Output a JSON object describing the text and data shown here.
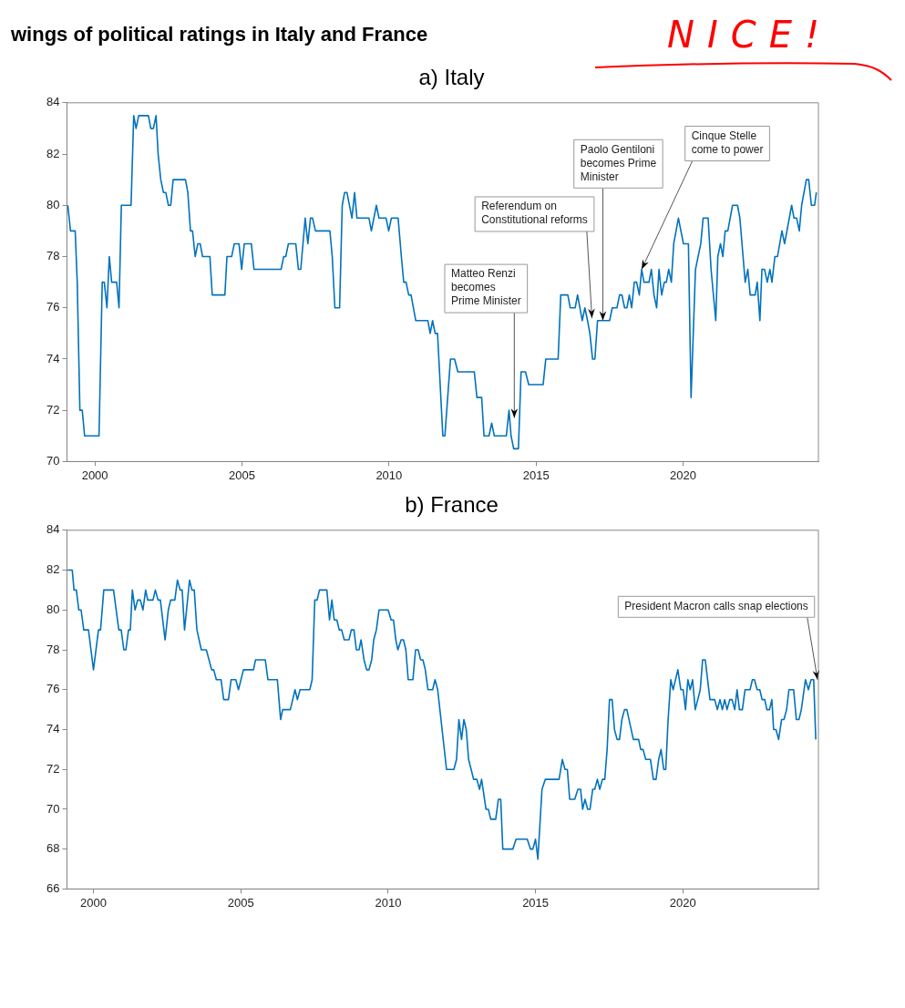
{
  "chart_data": [
    {
      "type": "line",
      "title": "wings of political ratings in Italy and France",
      "subtitle": "a) Italy",
      "x": [
        1999.08,
        1999.17,
        1999.33,
        1999.4,
        1999.49,
        1999.57,
        1999.65,
        2000.14,
        2000.25,
        2000.32,
        2000.41,
        2000.49,
        2000.57,
        2000.74,
        2000.82,
        2000.9,
        2001.23,
        2001.32,
        2001.4,
        2001.49,
        2001.82,
        2001.9,
        2001.99,
        2002.08,
        2002.15,
        2002.24,
        2002.33,
        2002.41,
        2002.5,
        2002.58,
        2002.66,
        2003.08,
        2003.16,
        2003.25,
        2003.32,
        2003.41,
        2003.5,
        2003.58,
        2003.66,
        2003.91,
        2003.99,
        2004.42,
        2004.49,
        2004.65,
        2004.74,
        2004.9,
        2004.99,
        2005.08,
        2005.32,
        2005.41,
        2006.33,
        2006.42,
        2006.49,
        2006.58,
        2006.83,
        2006.92,
        2007.0,
        2007.15,
        2007.24,
        2007.33,
        2007.4,
        2007.5,
        2007.99,
        2008.07,
        2008.16,
        2008.32,
        2008.41,
        2008.49,
        2008.57,
        2008.74,
        2008.83,
        2008.91,
        2009.32,
        2009.4,
        2009.57,
        2009.66,
        2009.9,
        2009.99,
        2010.08,
        2010.31,
        2010.42,
        2010.5,
        2010.58,
        2010.67,
        2010.75,
        2010.91,
        2011.32,
        2011.4,
        2011.48,
        2011.57,
        2011.65,
        2011.83,
        2011.9,
        2012.09,
        2012.23,
        2012.34,
        2012.9,
        2012.99,
        2013.15,
        2013.23,
        2013.4,
        2013.49,
        2013.58,
        2013.99,
        2014.08,
        2014.15,
        2014.24,
        2014.4,
        2014.49,
        2014.64,
        2014.75,
        2015.24,
        2015.33,
        2015.75,
        2015.84,
        2016.08,
        2016.16,
        2016.33,
        2016.41,
        2016.49,
        2016.57,
        2016.66,
        2016.75,
        2016.83,
        2016.92,
        2017.0,
        2017.09,
        2017.5,
        2017.59,
        2017.75,
        2017.84,
        2017.92,
        2018.01,
        2018.09,
        2018.17,
        2018.25,
        2018.34,
        2018.42,
        2018.51,
        2018.59,
        2018.67,
        2018.84,
        2018.92,
        2019.01,
        2019.1,
        2019.18,
        2019.27,
        2019.36,
        2019.43,
        2019.51,
        2019.6,
        2019.68,
        2019.84,
        2020.01,
        2020.18,
        2020.27,
        2020.42,
        2020.6,
        2020.68,
        2020.85,
        2020.95,
        2021.11,
        2021.18,
        2021.27,
        2021.35,
        2021.43,
        2021.52,
        2021.68,
        2021.85,
        2021.93,
        2022.11,
        2022.2,
        2022.28,
        2022.45,
        2022.52,
        2022.61,
        2022.68,
        2022.77,
        2022.86,
        2022.95,
        2023.02,
        2023.12,
        2023.21,
        2023.36,
        2023.45,
        2023.69,
        2023.77,
        2023.86,
        2023.95,
        2024.03,
        2024.19,
        2024.27,
        2024.36,
        2024.47,
        2024.53
      ],
      "series": [
        {
          "color": "#0072bd",
          "values": [
            80,
            79,
            79,
            77,
            72,
            72,
            71,
            71,
            77,
            77,
            76,
            78,
            77,
            77,
            76,
            80,
            80,
            83.5,
            83,
            83.5,
            83.5,
            83,
            83,
            83.5,
            82,
            81,
            80.5,
            80.5,
            80,
            80,
            81,
            81,
            80.5,
            79,
            79,
            78,
            78.5,
            78.5,
            78,
            78,
            76.5,
            76.5,
            78,
            78,
            78.5,
            78.5,
            77.5,
            78.5,
            78.5,
            77.5,
            77.5,
            78,
            78,
            78.5,
            78.5,
            77.5,
            77.5,
            79.5,
            78.5,
            79.5,
            79.5,
            79,
            79,
            78,
            76,
            76,
            80,
            80.5,
            80.5,
            79.5,
            80.5,
            79.5,
            79.5,
            79,
            80,
            79.5,
            79.5,
            79,
            79.5,
            79.5,
            78,
            77,
            77,
            76.5,
            76.5,
            75.5,
            75.5,
            75,
            75.5,
            75,
            75,
            71,
            71,
            74,
            74,
            73.5,
            73.5,
            72.5,
            72.5,
            71,
            71,
            71.5,
            71,
            71,
            72,
            71,
            70.5,
            70.5,
            73.5,
            73.5,
            73,
            73,
            74,
            74,
            76.5,
            76.5,
            76,
            76,
            76.5,
            76,
            75.5,
            76,
            75.5,
            75,
            74,
            74,
            75.5,
            75.5,
            76,
            76,
            76.5,
            76.5,
            76,
            76,
            76.5,
            76,
            77,
            77,
            76.5,
            77.5,
            77,
            77,
            77.5,
            76.5,
            76,
            77.5,
            76.5,
            77,
            77,
            77.5,
            77,
            78.5,
            79.5,
            78.5,
            78.5,
            72.5,
            77.5,
            78.5,
            79.5,
            79.5,
            77.5,
            75.5,
            78,
            78.5,
            78,
            79,
            79,
            80,
            80,
            79.5,
            77,
            77.5,
            76.5,
            76.5,
            77,
            75.5,
            77.5,
            77.5,
            77,
            77.5,
            77,
            78,
            78,
            79,
            78.5,
            80,
            79.5,
            79.5,
            79,
            80,
            81,
            81,
            80,
            80,
            80.5
          ]
        }
      ],
      "xlim": [
        1999.05,
        2024.6
      ],
      "xticks": [
        2000,
        2005,
        2010,
        2015,
        2020
      ],
      "ylim": [
        70,
        84
      ],
      "yticks": [
        70,
        72,
        74,
        76,
        78,
        80,
        82,
        84
      ],
      "marker": "none",
      "line_style": "solid",
      "legend": false,
      "annotations": [
        "NICE!",
        {
          "text": "Matteo Renzi\nbecomes\nPrime Minister",
          "x": 2014.26,
          "y": 71.7
        },
        {
          "text": "Referendum on\nConstitutional reforms",
          "x": 2016.9,
          "y": 75.6
        },
        {
          "text": "Paolo Gentiloni\nbecomes Prime\nMinister",
          "x": 2017.27,
          "y": 75.5
        },
        {
          "text": "Cinque Stelle\ncome to power",
          "x": 2018.59,
          "y": 77.5
        }
      ]
    },
    {
      "type": "line",
      "title": "b) France",
      "x": [
        1999.12,
        1999.28,
        1999.34,
        1999.42,
        1999.5,
        1999.58,
        1999.67,
        1999.83,
        2000.0,
        2000.17,
        2000.24,
        2000.35,
        2000.68,
        2000.86,
        2000.94,
        2001.03,
        2001.1,
        2001.19,
        2001.25,
        2001.32,
        2001.41,
        2001.5,
        2001.59,
        2001.68,
        2001.77,
        2001.84,
        2002.02,
        2002.1,
        2002.19,
        2002.27,
        2002.43,
        2002.54,
        2002.62,
        2002.76,
        2002.85,
        2002.94,
        2003.01,
        2003.09,
        2003.26,
        2003.34,
        2003.42,
        2003.51,
        2003.66,
        2003.83,
        2004.01,
        2004.08,
        2004.17,
        2004.33,
        2004.42,
        2004.58,
        2004.67,
        2004.83,
        2004.92,
        2005.09,
        2005.43,
        2005.5,
        2005.83,
        2005.92,
        2006.24,
        2006.35,
        2006.42,
        2006.68,
        2006.84,
        2006.92,
        2007.01,
        2007.34,
        2007.42,
        2007.51,
        2007.59,
        2007.67,
        2007.92,
        2008.01,
        2008.09,
        2008.17,
        2008.26,
        2008.34,
        2008.42,
        2008.51,
        2008.67,
        2008.75,
        2008.84,
        2008.92,
        2009.01,
        2009.08,
        2009.18,
        2009.27,
        2009.35,
        2009.44,
        2009.51,
        2009.6,
        2009.69,
        2010.0,
        2010.1,
        2010.18,
        2010.26,
        2010.33,
        2010.44,
        2010.52,
        2010.6,
        2010.68,
        2010.84,
        2010.93,
        2011.02,
        2011.1,
        2011.18,
        2011.26,
        2011.35,
        2011.51,
        2011.59,
        2011.68,
        2011.98,
        2012.23,
        2012.32,
        2012.4,
        2012.49,
        2012.57,
        2012.65,
        2012.73,
        2012.9,
        2013.01,
        2013.1,
        2013.17,
        2013.32,
        2013.4,
        2013.48,
        2013.65,
        2013.74,
        2013.82,
        2013.89,
        2014.23,
        2014.34,
        2014.72,
        2014.83,
        2014.91,
        2015.0,
        2015.08,
        2015.22,
        2015.33,
        2015.8,
        2015.91,
        2016.0,
        2016.08,
        2016.16,
        2016.33,
        2016.44,
        2016.53,
        2016.6,
        2016.68,
        2016.77,
        2016.85,
        2016.94,
        2017.01,
        2017.1,
        2017.18,
        2017.27,
        2017.35,
        2017.43,
        2017.51,
        2017.6,
        2017.68,
        2017.77,
        2017.85,
        2017.93,
        2018.02,
        2018.1,
        2018.32,
        2018.5,
        2018.57,
        2018.65,
        2018.74,
        2018.9,
        2019.0,
        2019.09,
        2019.18,
        2019.26,
        2019.35,
        2019.42,
        2019.5,
        2019.59,
        2019.67,
        2019.83,
        2019.93,
        2020.01,
        2020.09,
        2020.17,
        2020.25,
        2020.33,
        2020.42,
        2020.59,
        2020.67,
        2020.76,
        2020.92,
        2021.08,
        2021.17,
        2021.26,
        2021.34,
        2021.42,
        2021.5,
        2021.59,
        2021.67,
        2021.76,
        2021.84,
        2021.92,
        2022.02,
        2022.11,
        2022.28,
        2022.36,
        2022.43,
        2022.52,
        2022.61,
        2022.69,
        2022.78,
        2022.85,
        2022.94,
        2023.02,
        2023.08,
        2023.16,
        2023.25,
        2023.35,
        2023.43,
        2023.52,
        2023.6,
        2023.76,
        2023.85,
        2023.94,
        2024.02,
        2024.16,
        2024.26,
        2024.35,
        2024.44,
        2024.51
      ],
      "series": [
        {
          "color": "#0072bd",
          "values": [
            82,
            82,
            81,
            81,
            80,
            80,
            79,
            79,
            77,
            79,
            79,
            81,
            81,
            79,
            79,
            78,
            78,
            79,
            79,
            81,
            80,
            80.5,
            80.5,
            80,
            81,
            80.5,
            80.5,
            81,
            80.5,
            80.5,
            78.5,
            80,
            80.5,
            80.5,
            81.5,
            81,
            81,
            79,
            81.5,
            81,
            81,
            79,
            78,
            78,
            77,
            77,
            76.5,
            76.5,
            75.5,
            75.5,
            76.5,
            76.5,
            76,
            77,
            77,
            77.5,
            77.5,
            76.5,
            76.5,
            74.5,
            75,
            75,
            76,
            75.5,
            76,
            76,
            76.5,
            80.5,
            80.5,
            81,
            81,
            79.5,
            80.5,
            79.5,
            79.5,
            79,
            79,
            78.5,
            78.5,
            79,
            79,
            78,
            78,
            78.5,
            77.5,
            77,
            77,
            77.5,
            78.5,
            79,
            80,
            80,
            79.5,
            79.5,
            78.5,
            78,
            78.5,
            78.5,
            78,
            76.5,
            76.5,
            78,
            78,
            77.5,
            77.5,
            77,
            76,
            76,
            76.5,
            76,
            72,
            72,
            72.5,
            74.5,
            73.5,
            74.5,
            74,
            72.5,
            71.5,
            71.5,
            71,
            71.5,
            70,
            70,
            69.5,
            69.5,
            70.5,
            70.5,
            68,
            68,
            68.5,
            68.5,
            68,
            68,
            68.5,
            67.5,
            71,
            71.5,
            71.5,
            72.5,
            72,
            72,
            70.5,
            70.5,
            71,
            71,
            70,
            70.5,
            70,
            70,
            71,
            71,
            71.5,
            71,
            71.5,
            71.5,
            73,
            75.5,
            75.5,
            74,
            73.5,
            73.5,
            74.5,
            75,
            75,
            73.5,
            73.5,
            73,
            73,
            72.5,
            72.5,
            71.5,
            71.5,
            72.5,
            73,
            72,
            72,
            74.5,
            76.5,
            76,
            77,
            76,
            76,
            75,
            76.5,
            76,
            76.5,
            75,
            76,
            77.5,
            77.5,
            75.5,
            75.5,
            75,
            75.5,
            75,
            75.5,
            75,
            75.5,
            75.5,
            75,
            76,
            75,
            75,
            76,
            76,
            76.5,
            76.5,
            76,
            76,
            75.5,
            75.5,
            75,
            75,
            75.5,
            74,
            74,
            73.5,
            74.5,
            74.5,
            75,
            76,
            76,
            74.5,
            74.5,
            75,
            76.5,
            76,
            76.5,
            76.5,
            73.5
          ]
        }
      ],
      "xlim": [
        1999.1,
        2024.6
      ],
      "xticks": [
        2000,
        2005,
        2010,
        2015,
        2020
      ],
      "ylim": [
        66,
        84
      ],
      "yticks": [
        66,
        68,
        70,
        72,
        74,
        76,
        78,
        80,
        82,
        84
      ],
      "marker": "none",
      "line_style": "solid",
      "legend": false,
      "annotations": [
        {
          "text": "President Macron calls snap elections",
          "x": 2024.57,
          "y": 76.5
        }
      ]
    }
  ]
}
